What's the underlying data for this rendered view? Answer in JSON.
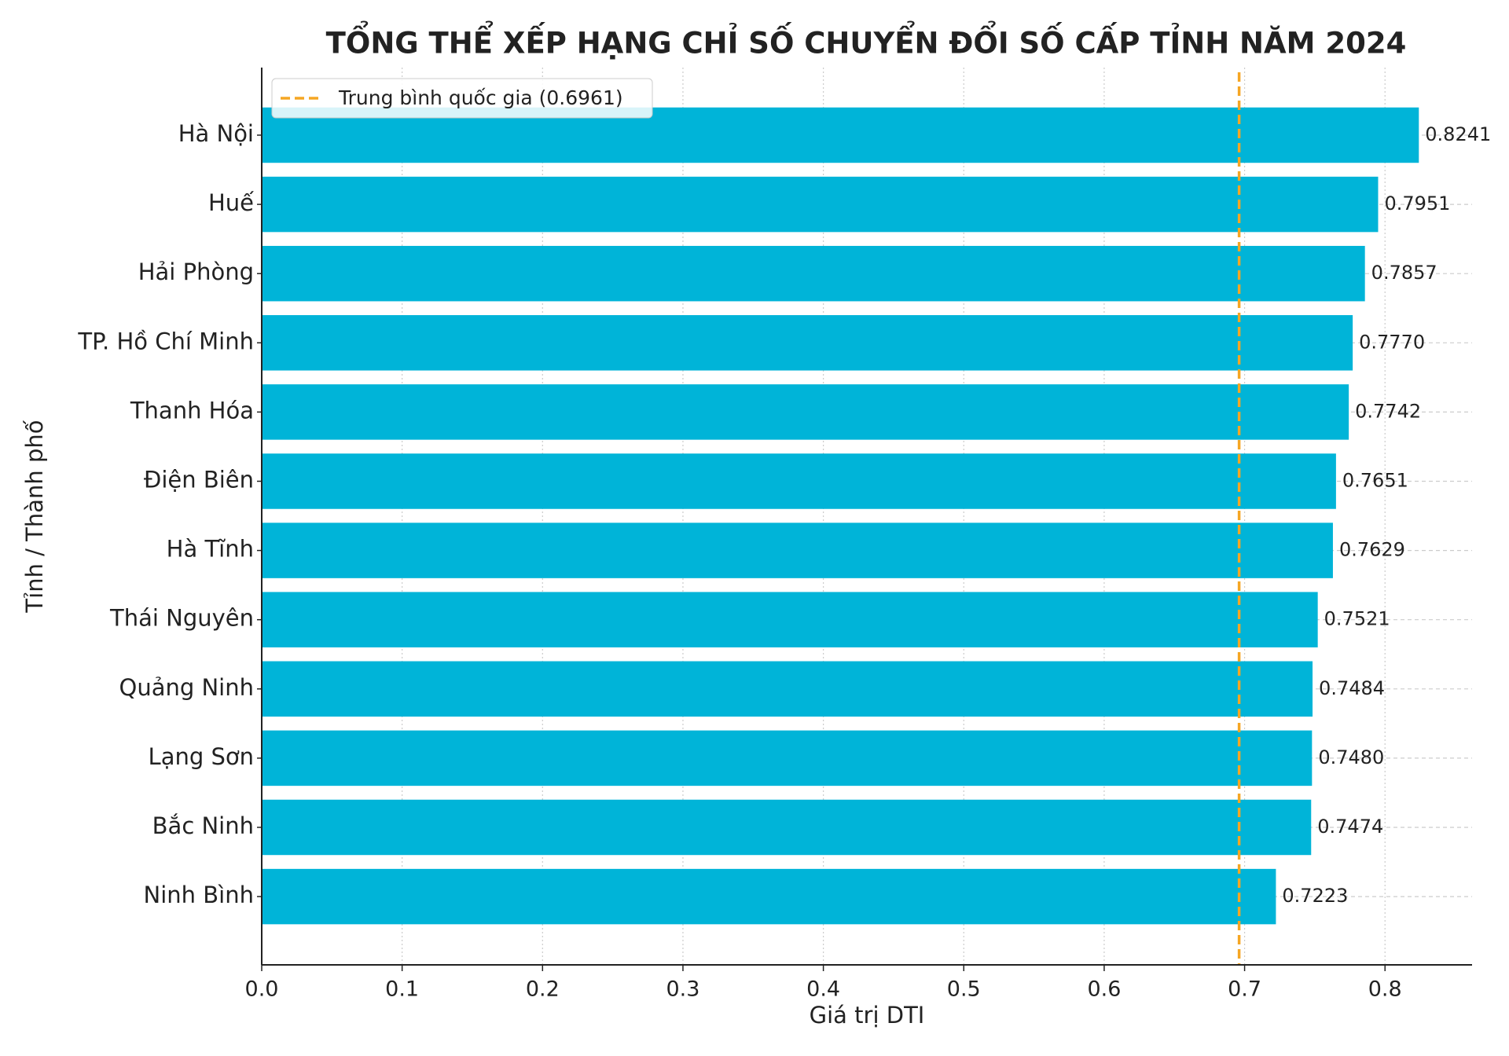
{
  "chart_data": {
    "type": "barh",
    "title": "TỔNG THỂ XẾP HẠNG CHỈ SỐ CHUYỂN ĐỔI SỐ CẤP TỈNH NĂM 2024",
    "xlabel": "Giá trị DTI",
    "ylabel": "Tỉnh / Thành phố",
    "categories": [
      "Hà Nội",
      "Huế",
      "Hải Phòng",
      "TP. Hồ Chí Minh",
      "Thanh Hóa",
      "Điện Biên",
      "Hà Tĩnh",
      "Thái Nguyên",
      "Quảng Ninh",
      "Lạng Sơn",
      "Bắc Ninh",
      "Ninh Bình"
    ],
    "values": [
      0.8241,
      0.7951,
      0.7857,
      0.777,
      0.7742,
      0.7651,
      0.7629,
      0.7521,
      0.7484,
      0.748,
      0.7474,
      0.7223
    ],
    "value_labels": [
      "0.8241",
      "0.7951",
      "0.7857",
      "0.7770",
      "0.7742",
      "0.7651",
      "0.7629",
      "0.7521",
      "0.7484",
      "0.7480",
      "0.7474",
      "0.7223"
    ],
    "color": "#00b4d8",
    "xlim": [
      0,
      0.862
    ],
    "xticks": [
      {
        "value": 0,
        "label": "0.0"
      },
      0.1,
      0.2,
      0.3,
      0.4,
      0.5,
      0.6,
      0.7,
      0.8
    ],
    "grid": true,
    "reference_line": {
      "value": 0.6961,
      "label": "Trung bình quốc gia (0.6961)",
      "color": "#f5a623"
    },
    "legend": "upper left"
  }
}
